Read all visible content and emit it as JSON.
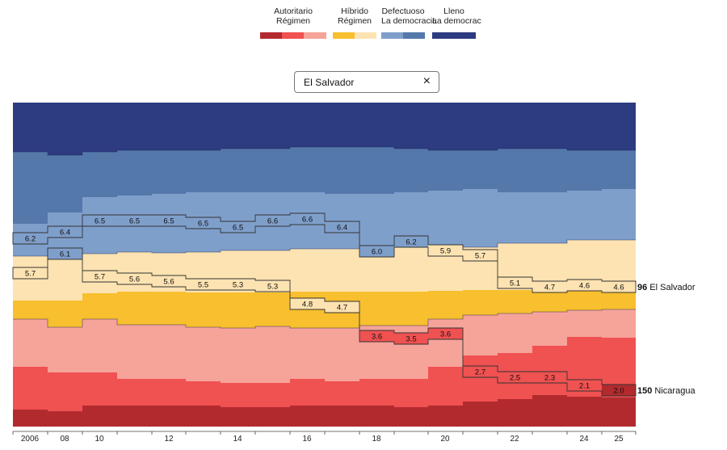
{
  "legend": [
    {
      "l1": "Autoritario",
      "l2": "Régimen",
      "colors": [
        "#b22a2e",
        "#f05151",
        "#f6a39a"
      ]
    },
    {
      "l1": "Híbrido",
      "l2": "Régimen",
      "colors": [
        "#f8bf2e",
        "#fde3b2"
      ]
    },
    {
      "l1": "Defectuoso",
      "l2": "La democracia",
      "colors": [
        "#7f9fcb",
        "#5578ab"
      ]
    },
    {
      "l1": "Lleno",
      "l2": "La democrac",
      "colors": [
        "#2d3b80"
      ]
    }
  ],
  "search": {
    "value": "El Salvador",
    "clear_icon": "×"
  },
  "chart_data": {
    "type": "area",
    "title": "",
    "xlabel": "",
    "ylabel": "",
    "x_ticks": [
      "2006",
      "08",
      "10",
      "12",
      "14",
      "16",
      "18",
      "20",
      "22",
      "24",
      "25"
    ],
    "highlighted": [
      {
        "country": "El Salvador",
        "rank": "96",
        "years": [
          "2006",
          "2008",
          "2010",
          "2011",
          "2012",
          "2013",
          "2014",
          "2015",
          "2016",
          "2017",
          "2018",
          "2019",
          "2020",
          "2021",
          "2022",
          "2023",
          "2024",
          "2025"
        ],
        "scores": [
          "6.2",
          "6.4",
          "6.5",
          "6.5",
          "6.5",
          "6.5",
          "6.5",
          "6.6",
          "6.6",
          "6.4",
          "6.0",
          "6.2",
          "5.9",
          "5.7",
          "5.1",
          "4.7",
          "4.6",
          "4.6"
        ]
      },
      {
        "country": "Nicaragua",
        "rank": "150",
        "years": [
          "2006",
          "2008",
          "2010",
          "2011",
          "2012",
          "2013",
          "2014",
          "2015",
          "2016",
          "2017",
          "2018",
          "2019",
          "2020",
          "2021",
          "2022",
          "2023",
          "2024",
          "2025"
        ],
        "scores": [
          "5.7",
          "6.1",
          "5.7",
          "5.6",
          "5.6",
          "5.5",
          "5.3",
          "5.3",
          "4.8",
          "4.7",
          "3.6",
          "3.5",
          "3.6",
          "2.7",
          "2.5",
          "2.3",
          "2.1",
          "2.0"
        ]
      }
    ]
  },
  "colors": {
    "authoritarian_dark": "#b22a2e",
    "authoritarian_mid": "#f05151",
    "authoritarian_light": "#f6a39a",
    "hybrid_dark": "#f8bf2e",
    "hybrid_light": "#fde3b2",
    "flawed_light": "#7f9fcb",
    "flawed_dark": "#5578ab",
    "full": "#2d3b80"
  }
}
